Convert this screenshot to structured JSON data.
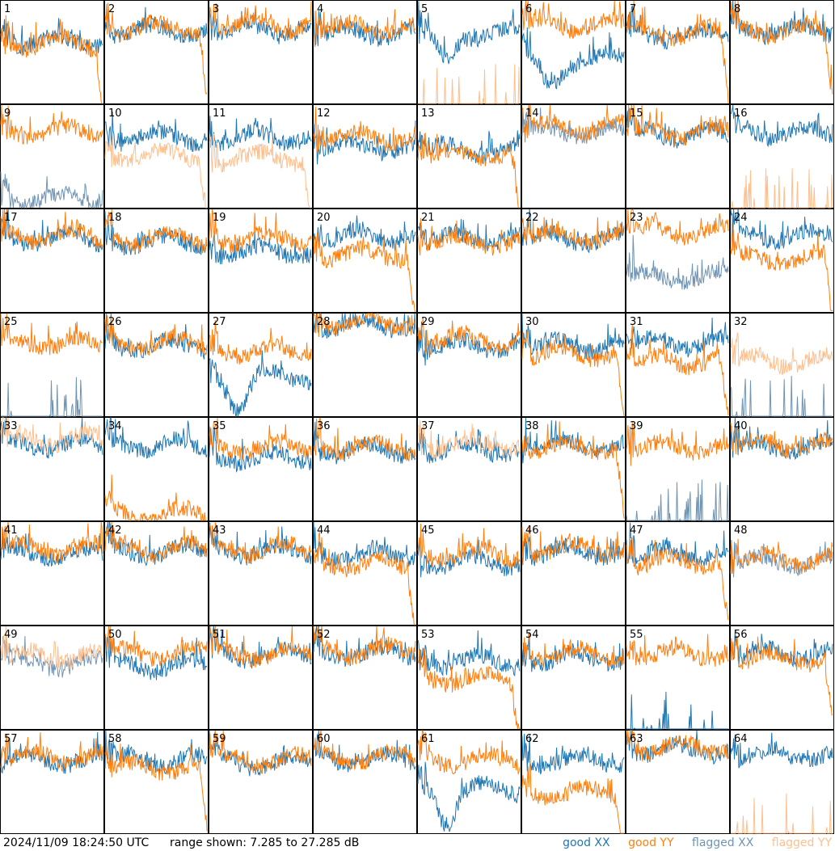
{
  "footer": {
    "timestamp": "2024/11/09 18:24:50 UTC",
    "range": "range shown: 7.285 to 27.285 dB"
  },
  "legend": {
    "good_xx": "good XX",
    "good_yy": "good YY",
    "flagged_xx": "flagged XX",
    "flagged_yy": "flagged YY"
  },
  "colors": {
    "good_xx": "#1f77b4",
    "good_yy": "#ff7f0e",
    "flagged_xx": "#7094b3",
    "flagged_yy": "#ffbf8c"
  },
  "chart_data": {
    "type": "line",
    "ylim": [
      7.285,
      27.285
    ],
    "grid": "8x8 small multiples",
    "panels": [
      {
        "label": "1",
        "xx": "good",
        "yy": "good",
        "xx_level": 19.5,
        "yy_level": 19.0,
        "yy_tail": "drop"
      },
      {
        "label": "2",
        "xx": "good",
        "yy": "good",
        "xx_level": 21.5,
        "yy_level": 22.0,
        "yy_tail": "drop"
      },
      {
        "label": "3",
        "xx": "good",
        "yy": "good",
        "xx_level": 21.5,
        "yy_level": 22.5
      },
      {
        "label": "4",
        "xx": "good",
        "yy": "good",
        "xx_level": 21.0,
        "yy_level": 22.0
      },
      {
        "label": "5",
        "xx": "good",
        "yy": "flagged",
        "xx_level": 21.0,
        "yy_level": 7.5,
        "xx_shape": "dip"
      },
      {
        "label": "6",
        "xx": "good",
        "yy": "good",
        "xx_level": 16.0,
        "yy_level": 22.5,
        "xx_shape": "dip"
      },
      {
        "label": "7",
        "xx": "good",
        "yy": "good",
        "xx_level": 20.5,
        "yy_level": 21.0,
        "yy_tail": "drop"
      },
      {
        "label": "8",
        "xx": "good",
        "yy": "good",
        "xx_level": 21.5,
        "yy_level": 21.5,
        "yy_tail": "drop"
      },
      {
        "label": "9",
        "xx": "flagged",
        "yy": "good",
        "xx_level": 9.0,
        "yy_level": 22.0
      },
      {
        "label": "10",
        "xx": "good",
        "yy": "flagged",
        "xx_level": 21.0,
        "yy_level": 17.5,
        "yy_tail": "drop"
      },
      {
        "label": "11",
        "xx": "good",
        "yy": "flagged",
        "xx_level": 21.0,
        "yy_level": 17.0,
        "yy_tail": "drop"
      },
      {
        "label": "12",
        "xx": "good",
        "yy": "good",
        "xx_level": 19.0,
        "yy_level": 21.0
      },
      {
        "label": "13",
        "xx": "good",
        "yy": "good",
        "xx_level": 18.5,
        "yy_level": 17.5,
        "yy_tail": "drop"
      },
      {
        "label": "14",
        "xx": "flagged",
        "yy": "good",
        "xx_level": 22.0,
        "yy_level": 23.0
      },
      {
        "label": "15",
        "xx": "good",
        "yy": "good",
        "xx_level": 21.5,
        "yy_level": 22.0
      },
      {
        "label": "16",
        "xx": "good",
        "yy": "flagged",
        "xx_level": 22.0,
        "yy_level": 7.5
      },
      {
        "label": "17",
        "xx": "good",
        "yy": "good",
        "xx_level": 21.5,
        "yy_level": 22.0
      },
      {
        "label": "18",
        "xx": "good",
        "yy": "good",
        "xx_level": 21.0,
        "yy_level": 21.5
      },
      {
        "label": "19",
        "xx": "good",
        "yy": "good",
        "xx_level": 19.0,
        "yy_level": 21.5
      },
      {
        "label": "20",
        "xx": "good",
        "yy": "good",
        "xx_level": 22.0,
        "yy_level": 18.5,
        "yy_tail": "drop"
      },
      {
        "label": "21",
        "xx": "good",
        "yy": "good",
        "xx_level": 21.5,
        "yy_level": 21.0
      },
      {
        "label": "22",
        "xx": "good",
        "yy": "good",
        "xx_level": 21.5,
        "yy_level": 22.0
      },
      {
        "label": "23",
        "xx": "flagged",
        "yy": "good",
        "xx_level": 14.0,
        "yy_level": 23.0
      },
      {
        "label": "24",
        "xx": "good",
        "yy": "good",
        "xx_level": 22.0,
        "yy_level": 17.5,
        "yy_tail": "drop"
      },
      {
        "label": "25",
        "xx": "flagged",
        "yy": "good",
        "xx_level": 7.5,
        "yy_level": 21.5
      },
      {
        "label": "26",
        "xx": "good",
        "yy": "good",
        "xx_level": 21.0,
        "yy_level": 21.5
      },
      {
        "label": "27",
        "xx": "good",
        "yy": "good",
        "xx_level": 15.0,
        "yy_level": 20.0,
        "xx_shape": "dip"
      },
      {
        "label": "28",
        "xx": "good",
        "yy": "good",
        "xx_level": 25.0,
        "yy_level": 25.5
      },
      {
        "label": "29",
        "xx": "good",
        "yy": "good",
        "xx_level": 21.0,
        "yy_level": 22.0
      },
      {
        "label": "30",
        "xx": "good",
        "yy": "good",
        "xx_level": 21.0,
        "yy_level": 19.5,
        "yy_tail": "drop"
      },
      {
        "label": "31",
        "xx": "good",
        "yy": "good",
        "xx_level": 21.5,
        "yy_level": 18.0,
        "yy_tail": "drop"
      },
      {
        "label": "32",
        "xx": "flagged",
        "yy": "flagged",
        "xx_level": 7.5,
        "yy_level": 18.0
      },
      {
        "label": "33",
        "xx": "good",
        "yy": "flagged",
        "xx_level": 22.0,
        "yy_level": 23.0
      },
      {
        "label": "34",
        "xx": "good",
        "yy": "good",
        "xx_level": 22.0,
        "yy_level": 8.5
      },
      {
        "label": "35",
        "xx": "good",
        "yy": "good",
        "xx_level": 19.5,
        "yy_level": 21.5
      },
      {
        "label": "36",
        "xx": "good",
        "yy": "good",
        "xx_level": 21.0,
        "yy_level": 21.5
      },
      {
        "label": "37",
        "xx": "good",
        "yy": "flagged",
        "xx_level": 21.0,
        "yy_level": 22.0
      },
      {
        "label": "38",
        "xx": "good",
        "yy": "good",
        "xx_level": 22.0,
        "yy_level": 21.5,
        "yy_tail": "drop"
      },
      {
        "label": "39",
        "xx": "flagged",
        "yy": "good",
        "xx_level": 7.5,
        "yy_level": 21.5
      },
      {
        "label": "40",
        "xx": "good",
        "yy": "good",
        "xx_level": 21.5,
        "yy_level": 22.0
      },
      {
        "label": "41",
        "xx": "good",
        "yy": "good",
        "xx_level": 21.0,
        "yy_level": 22.0
      },
      {
        "label": "42",
        "xx": "good",
        "yy": "good",
        "xx_level": 21.5,
        "yy_level": 22.0
      },
      {
        "label": "43",
        "xx": "good",
        "yy": "good",
        "xx_level": 21.5,
        "yy_level": 22.0
      },
      {
        "label": "44",
        "xx": "good",
        "yy": "good",
        "xx_level": 21.0,
        "yy_level": 19.0,
        "yy_tail": "drop"
      },
      {
        "label": "45",
        "xx": "good",
        "yy": "good",
        "xx_level": 19.5,
        "yy_level": 21.0
      },
      {
        "label": "46",
        "xx": "good",
        "yy": "good",
        "xx_level": 21.5,
        "yy_level": 22.0
      },
      {
        "label": "47",
        "xx": "good",
        "yy": "good",
        "xx_level": 21.0,
        "yy_level": 19.5,
        "yy_tail": "drop"
      },
      {
        "label": "48",
        "xx": "flagged",
        "yy": "good",
        "xx_level": 19.5,
        "yy_level": 20.0
      },
      {
        "label": "49",
        "xx": "flagged",
        "yy": "flagged",
        "xx_level": 20.0,
        "yy_level": 21.5
      },
      {
        "label": "50",
        "xx": "good",
        "yy": "good",
        "xx_level": 19.5,
        "yy_level": 22.0
      },
      {
        "label": "51",
        "xx": "good",
        "yy": "good",
        "xx_level": 21.5,
        "yy_level": 22.0
      },
      {
        "label": "52",
        "xx": "good",
        "yy": "good",
        "xx_level": 22.0,
        "yy_level": 22.5
      },
      {
        "label": "53",
        "xx": "good",
        "yy": "good",
        "xx_level": 20.5,
        "yy_level": 17.0,
        "yy_tail": "drop"
      },
      {
        "label": "54",
        "xx": "good",
        "yy": "good",
        "xx_level": 21.0,
        "yy_level": 22.0
      },
      {
        "label": "55",
        "xx": "good",
        "yy": "good",
        "xx_level": 7.5,
        "yy_level": 22.0
      },
      {
        "label": "56",
        "xx": "good",
        "yy": "good",
        "xx_level": 22.0,
        "yy_level": 21.0,
        "yy_tail": "drop"
      },
      {
        "label": "57",
        "xx": "good",
        "yy": "good",
        "xx_level": 21.5,
        "yy_level": 22.0
      },
      {
        "label": "58",
        "xx": "good",
        "yy": "good",
        "xx_level": 21.5,
        "yy_level": 20.0,
        "yy_tail": "drop"
      },
      {
        "label": "59",
        "xx": "good",
        "yy": "good",
        "xx_level": 21.0,
        "yy_level": 21.5
      },
      {
        "label": "60",
        "xx": "good",
        "yy": "good",
        "xx_level": 21.5,
        "yy_level": 22.0
      },
      {
        "label": "61",
        "xx": "good",
        "yy": "good",
        "xx_level": 16.0,
        "yy_level": 21.5,
        "xx_shape": "dip"
      },
      {
        "label": "62",
        "xx": "good",
        "yy": "good",
        "xx_level": 21.5,
        "yy_level": 15.0,
        "yy_tail": "drop"
      },
      {
        "label": "63",
        "xx": "good",
        "yy": "good",
        "xx_level": 23.5,
        "yy_level": 24.0
      },
      {
        "label": "64",
        "xx": "good",
        "yy": "flagged",
        "xx_level": 22.5,
        "yy_level": 7.5
      }
    ]
  }
}
